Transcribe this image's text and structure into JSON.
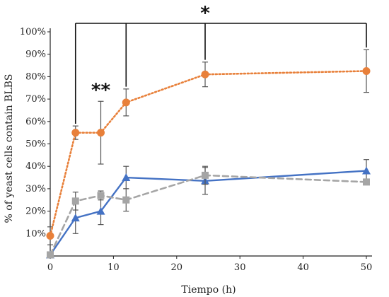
{
  "chart_data": {
    "type": "line",
    "title": "",
    "xlabel": "Tiempo (h)",
    "ylabel": "% of yeast cells contain BLBS",
    "xlim": [
      0,
      50
    ],
    "ylim": [
      0,
      100
    ],
    "x_ticks": [
      0,
      10,
      20,
      30,
      40,
      50
    ],
    "y_ticks": [
      10,
      20,
      30,
      40,
      50,
      60,
      70,
      80,
      90,
      100
    ],
    "y_tick_labels": [
      "10%",
      "20%",
      "30%",
      "40%",
      "50%",
      "60%",
      "70%",
      "80%",
      "90%",
      "100%"
    ],
    "grid": false,
    "legend": "none",
    "series": [
      {
        "color": "#E8803A",
        "line": "dotted",
        "marker": "circle",
        "x": [
          0,
          4,
          8,
          12,
          24.5,
          50
        ],
        "y": [
          9,
          55,
          55,
          68.5,
          81,
          82.5
        ],
        "err": [
          4,
          3,
          14,
          6,
          5.5,
          9.5
        ]
      },
      {
        "color": "#4472C4",
        "line": "solid",
        "marker": "triangle",
        "x": [
          0,
          4,
          8,
          12,
          24.5,
          50
        ],
        "y": [
          0.5,
          17,
          20,
          35,
          33.5,
          38
        ],
        "err": [
          0,
          7,
          6,
          5,
          6,
          5
        ]
      },
      {
        "color": "#A5A5A5",
        "line": "dashed",
        "marker": "square",
        "x": [
          0,
          4,
          8,
          12,
          24.5,
          50
        ],
        "y": [
          0.5,
          24.5,
          27,
          25,
          36,
          33
        ],
        "err": [
          0,
          4,
          2,
          5,
          4,
          1
        ]
      }
    ],
    "significance": {
      "single": {
        "label": "*",
        "x": [
          4,
          12,
          24.5,
          50
        ]
      },
      "double": {
        "label": "**",
        "x": 8
      }
    }
  }
}
